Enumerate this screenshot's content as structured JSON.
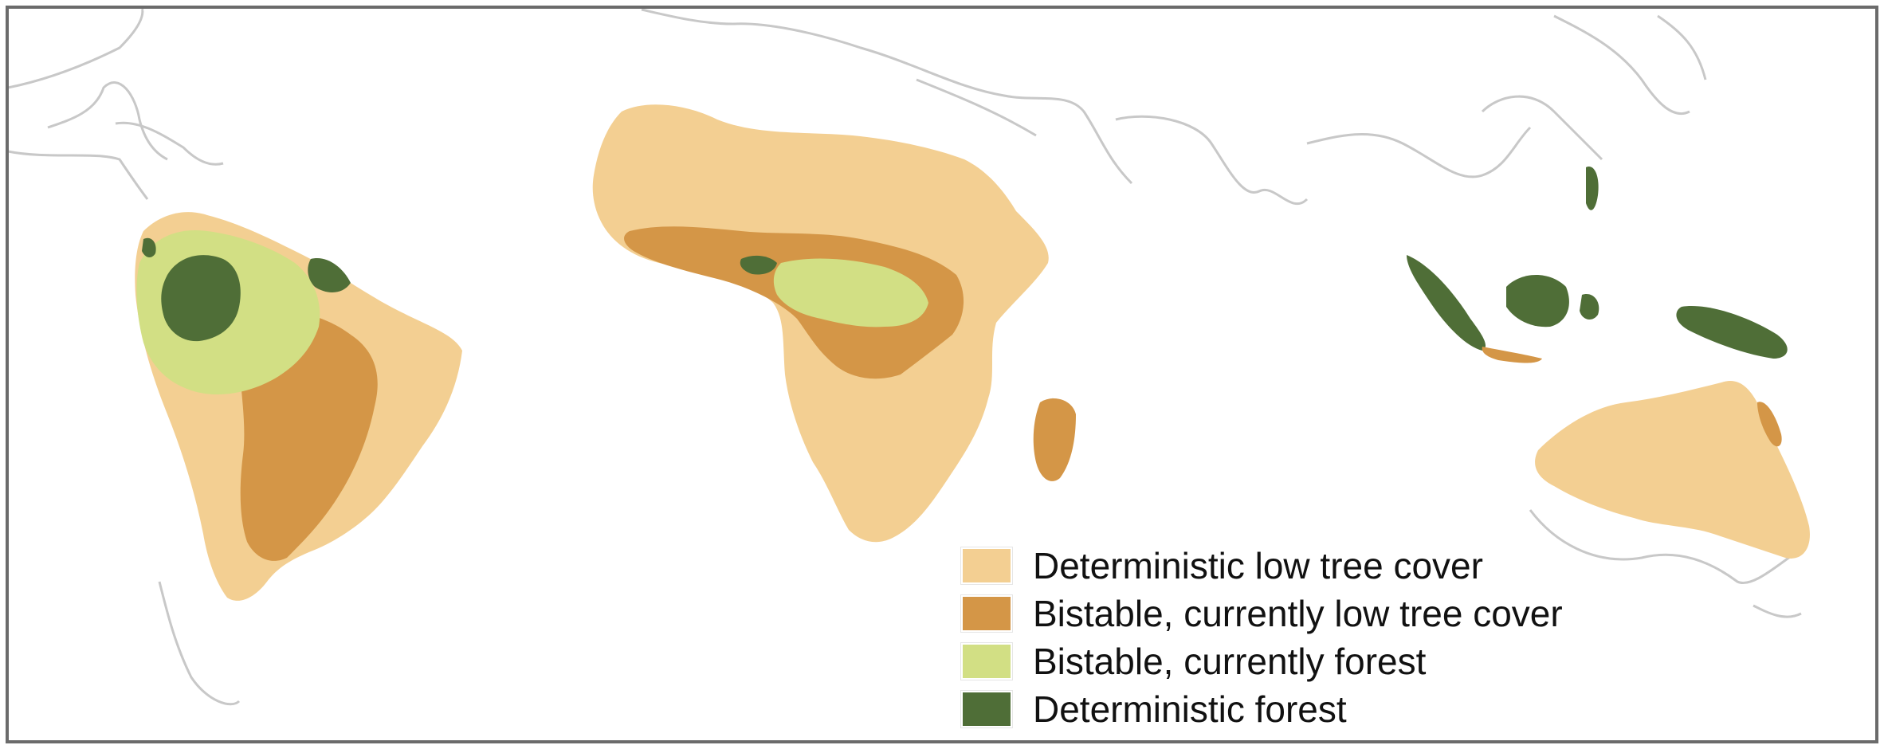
{
  "colors": {
    "frame": "#6b6b6b",
    "coastline": "#c8c8c8",
    "deterministic_low_tree_cover": "#f3cf92",
    "bistable_currently_low_tree_cover": "#d49647",
    "bistable_currently_forest": "#d2df84",
    "deterministic_forest": "#4f6e37"
  },
  "legend": {
    "items": [
      {
        "label": "Deterministic low tree cover",
        "color": "#f3cf92"
      },
      {
        "label": "Bistable, currently low tree cover",
        "color": "#d49647"
      },
      {
        "label": "Bistable, currently forest",
        "color": "#d2df84"
      },
      {
        "label": "Deterministic forest",
        "color": "#4f6e37"
      }
    ]
  }
}
